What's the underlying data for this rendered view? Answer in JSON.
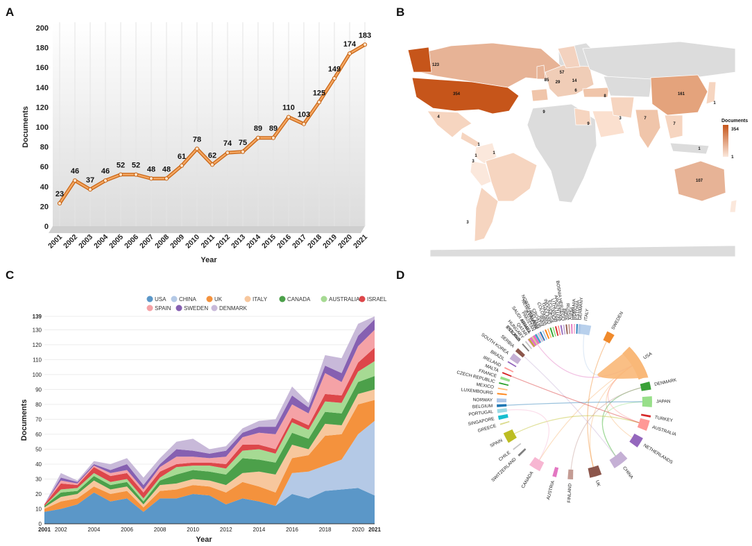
{
  "panels": {
    "a": "A",
    "b": "B",
    "c": "C",
    "d": "D"
  },
  "chart_data": [
    {
      "type": "line",
      "xlabel": "Year",
      "ylabel": "Documents",
      "ylim": [
        0,
        200
      ],
      "yticks": [
        0,
        20,
        40,
        60,
        80,
        100,
        120,
        140,
        160,
        180,
        200
      ],
      "x": [
        "2001",
        "2002",
        "2003",
        "2004",
        "2005",
        "2006",
        "2007",
        "2008",
        "2009",
        "2010",
        "2011",
        "2012",
        "2013",
        "2014",
        "2015",
        "2016",
        "2017",
        "2018",
        "2019",
        "2020",
        "2021"
      ],
      "values": [
        23,
        46,
        37,
        46,
        52,
        52,
        48,
        48,
        61,
        78,
        62,
        74,
        75,
        89,
        89,
        110,
        103,
        125,
        149,
        174,
        183
      ],
      "color": "#e9883a"
    },
    {
      "type": "map",
      "legend_title": "Documents",
      "legend_max": "354",
      "legend_min": "1",
      "colors": {
        "high": "#c6551a",
        "low": "#fbe8dc",
        "none": "#dcdcdc"
      },
      "countries": [
        {
          "value": "354"
        },
        {
          "value": "123"
        },
        {
          "value": "161"
        },
        {
          "value": "107"
        },
        {
          "value": "85"
        },
        {
          "value": "57"
        },
        {
          "value": "29"
        },
        {
          "value": "14"
        },
        {
          "value": "9"
        },
        {
          "value": "9"
        },
        {
          "value": "8"
        },
        {
          "value": "7"
        },
        {
          "value": "7"
        },
        {
          "value": "6"
        },
        {
          "value": "4"
        },
        {
          "value": "3"
        },
        {
          "value": "3"
        },
        {
          "value": "3"
        },
        {
          "value": "1"
        },
        {
          "value": "1"
        },
        {
          "value": "1"
        },
        {
          "value": "1"
        },
        {
          "value": "1"
        }
      ]
    },
    {
      "type": "area",
      "xlabel": "Year",
      "ylabel": "Documents",
      "ylim": [
        0,
        139
      ],
      "yticks": [
        0,
        10,
        20,
        30,
        40,
        50,
        60,
        70,
        80,
        90,
        100,
        110,
        120,
        130,
        139
      ],
      "x": [
        2001,
        2002,
        2003,
        2004,
        2005,
        2006,
        2007,
        2008,
        2009,
        2010,
        2011,
        2012,
        2013,
        2014,
        2015,
        2016,
        2017,
        2018,
        2019,
        2020,
        2021
      ],
      "xtick_labels": [
        "2001",
        "2002",
        "2004",
        "2006",
        "2008",
        "2010",
        "2012",
        "2014",
        "2016",
        "2018",
        "2020",
        "2021"
      ],
      "series": [
        {
          "name": "USA",
          "color": "#5b97c8",
          "values": [
            8,
            10,
            13,
            21,
            15,
            17,
            8,
            17,
            17,
            20,
            19,
            13,
            17,
            15,
            12,
            20,
            17,
            22,
            23,
            24,
            19
          ]
        },
        {
          "name": "CHINA",
          "color": "#b4c9e6",
          "values": [
            0,
            0,
            0,
            0,
            0,
            0,
            0,
            0,
            0,
            0,
            0,
            0,
            0,
            0,
            0,
            14,
            18,
            17,
            20,
            36,
            50
          ]
        },
        {
          "name": "UK",
          "color": "#f4923d",
          "values": [
            2,
            5,
            4,
            4,
            5,
            5,
            3,
            5,
            6,
            6,
            6,
            8,
            11,
            10,
            9,
            10,
            11,
            20,
            17,
            20,
            14
          ]
        },
        {
          "name": "ITALY",
          "color": "#f7c79d",
          "values": [
            1,
            3,
            3,
            4,
            3,
            3,
            2,
            4,
            4,
            4,
            4,
            5,
            6,
            10,
            12,
            9,
            4,
            8,
            6,
            7,
            7
          ]
        },
        {
          "name": "CANADA",
          "color": "#4ca04a",
          "values": [
            1,
            3,
            2,
            3,
            3,
            3,
            2,
            3,
            6,
            6,
            6,
            7,
            10,
            8,
            8,
            8,
            7,
            8,
            8,
            8,
            9
          ]
        },
        {
          "name": "AUSTRALIA",
          "color": "#a6da93",
          "values": [
            0,
            2,
            2,
            2,
            2,
            2,
            2,
            2,
            5,
            3,
            4,
            4,
            5,
            7,
            6,
            7,
            6,
            7,
            7,
            7,
            10
          ]
        },
        {
          "name": "ISRAEL",
          "color": "#dd474a",
          "values": [
            1,
            4,
            2,
            4,
            4,
            4,
            4,
            4,
            2,
            2,
            2,
            3,
            4,
            3,
            3,
            3,
            3,
            5,
            5,
            6,
            9
          ]
        },
        {
          "name": "SPAIN",
          "color": "#f5a2a6",
          "values": [
            0,
            2,
            1,
            1,
            2,
            2,
            2,
            3,
            5,
            4,
            3,
            5,
            5,
            8,
            10,
            9,
            8,
            14,
            9,
            11,
            12
          ]
        },
        {
          "name": "SWEDEN",
          "color": "#8660b1",
          "values": [
            0,
            2,
            1,
            1,
            2,
            4,
            3,
            2,
            5,
            4,
            3,
            4,
            3,
            4,
            5,
            6,
            4,
            5,
            6,
            7,
            7
          ]
        },
        {
          "name": "DENMARK",
          "color": "#c8b9d9",
          "values": [
            0,
            3,
            1,
            2,
            4,
            4,
            5,
            4,
            5,
            8,
            3,
            3,
            3,
            4,
            5,
            6,
            3,
            7,
            10,
            8,
            2
          ]
        }
      ]
    },
    {
      "type": "chord",
      "labels": [
        "ITALY",
        "SWEDEN",
        "USA",
        "DENMARK",
        "JAPAN",
        "TURKEY",
        "AUSTRALIA",
        "NETHERLANDS",
        "CHINA",
        "UK",
        "FINLAND",
        "AUSTRIA",
        "CANADA",
        "SWITZERLAND",
        "CHILE",
        "SPAIN",
        "GREECE",
        "SINGAPORE",
        "PORTUGAL",
        "BELGIUM",
        "NORWAY",
        "LUXEMBOURG",
        "MEXICO",
        "CZECH REPUBLIC",
        "FRANCE",
        "MALTA",
        "IRELAND",
        "BRAZIL",
        "SOUTH KOREA",
        "SERBIA",
        "POLAND",
        "ISRAEL",
        "NEW ZEALAND",
        "ESTONIA",
        "HUNGARY",
        "QATAR",
        "SAUDI ARABIA",
        "PAKISTAN",
        "SLOVENIA",
        "NORTH IRELAND",
        "CROATIA",
        "IRAN",
        "COLOMBIA",
        "THAILAND",
        "INDONESIA",
        "ECUADOR",
        "LITHUANIA",
        "ARGENTINA",
        "BOSNIA HERZEGO",
        "INDIA",
        "RUSSIA",
        "PERU",
        "ROMANIA",
        "ESTONIA",
        "GERMANY"
      ]
    }
  ]
}
